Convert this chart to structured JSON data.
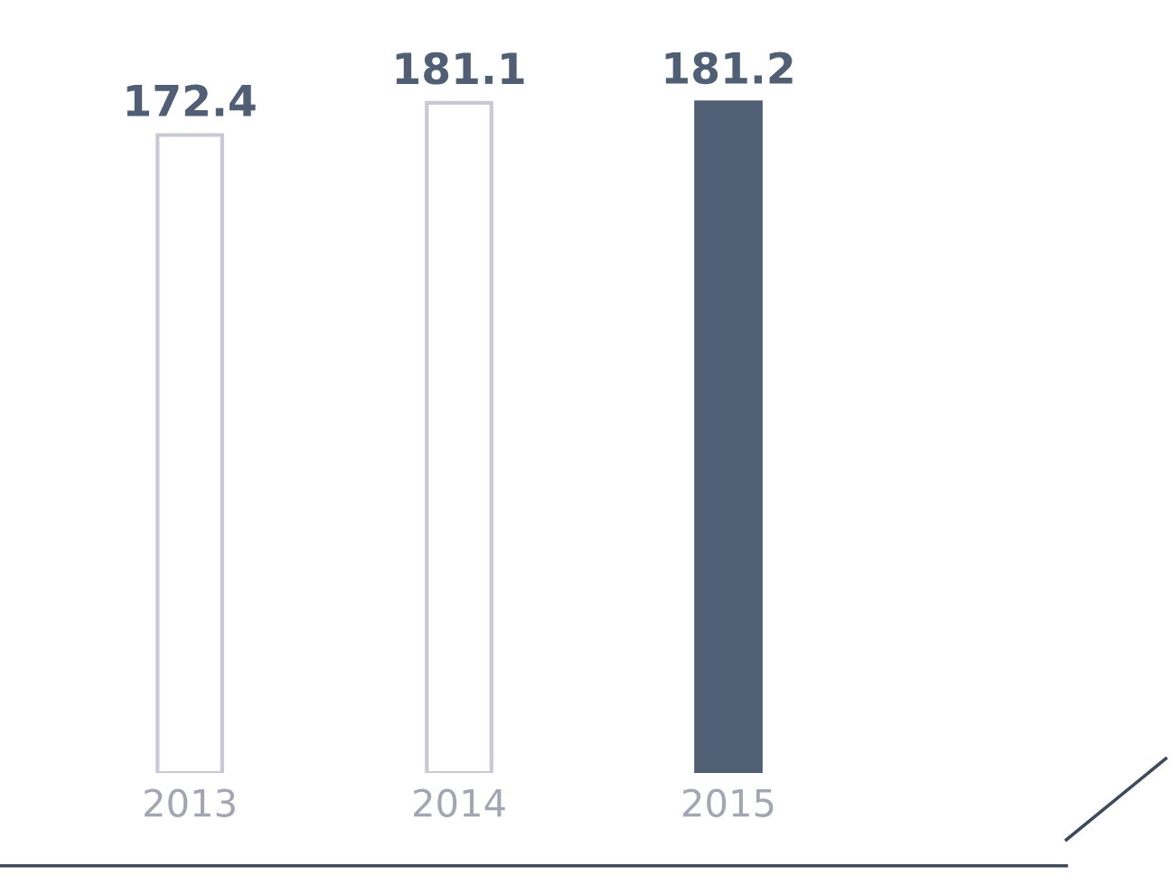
{
  "chart_data": {
    "type": "bar",
    "categories": [
      "2013",
      "2014",
      "2015"
    ],
    "values": [
      172.4,
      181.1,
      181.2
    ],
    "colors": [
      "#ffffff",
      "#ffffff",
      "#505f73"
    ],
    "data_labels": true,
    "grid": false,
    "legend": false
  }
}
